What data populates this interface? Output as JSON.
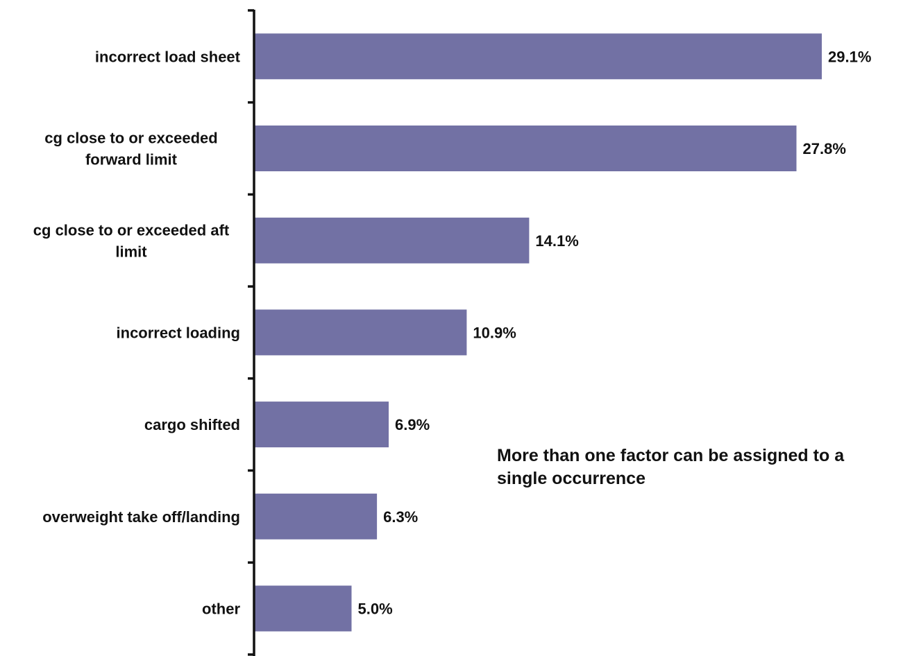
{
  "chart_data": {
    "type": "bar",
    "orientation": "horizontal",
    "categories": [
      [
        "incorrect load sheet"
      ],
      [
        "cg close to or exceeded",
        "forward limit"
      ],
      [
        "cg close to or exceeded aft",
        "limit"
      ],
      [
        "incorrect loading"
      ],
      [
        "cargo shifted"
      ],
      [
        "overweight take off/landing"
      ],
      [
        "other"
      ]
    ],
    "values": [
      29.1,
      27.8,
      14.1,
      10.9,
      6.9,
      6.3,
      5.0
    ],
    "value_labels": [
      "29.1%",
      "27.8%",
      "14.1%",
      "10.9%",
      "6.9%",
      "6.3%",
      "5.0%"
    ],
    "xlim": [
      0,
      29.1
    ],
    "grid": false,
    "legend": "none",
    "bar_color": "#7271a4",
    "axis_color": "#111111",
    "annotation": "More than one factor can be assigned to a single occurrence"
  }
}
